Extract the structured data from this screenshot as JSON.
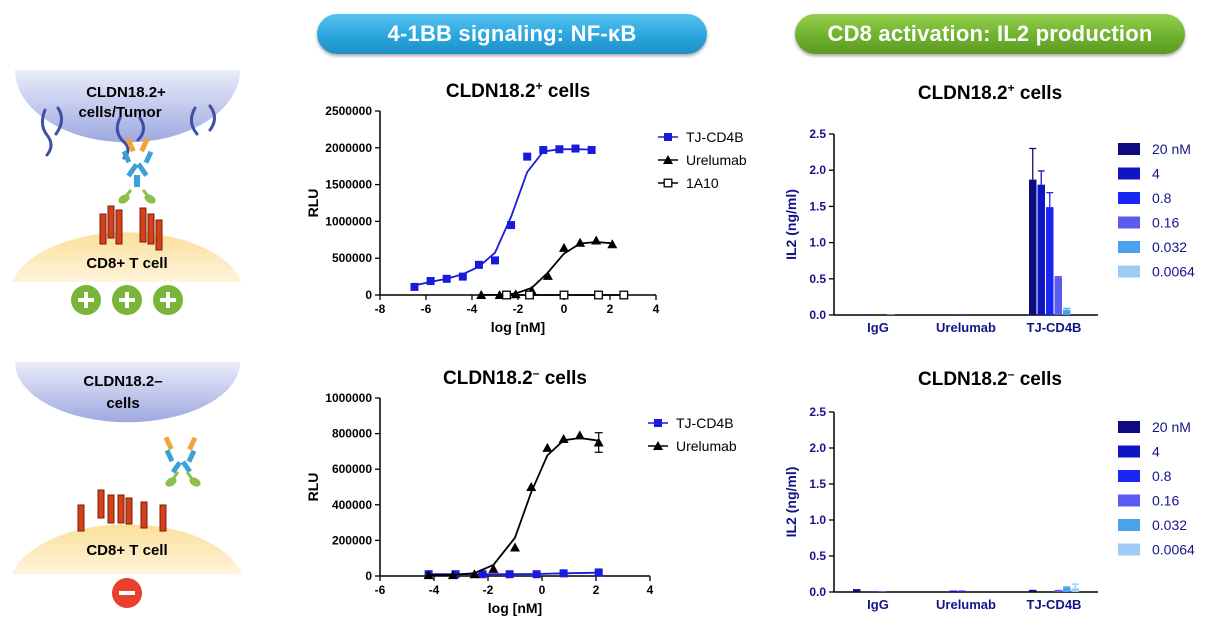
{
  "header": {
    "left_pill": "4-1BB signaling: NF-κB",
    "right_pill": "CD8 activation: IL2 production"
  },
  "colors": {
    "pill_blue": "#2aa6df",
    "pill_green": "#6fb22e",
    "tumor_blue": "#aab4e6",
    "tcell_yellow": "#fbdf9a",
    "receptor_red": "#d4401a",
    "plus_green": "#7ab53a",
    "minus_red": "#e8402a",
    "tj_blue": "#1a1adb"
  },
  "schematic": {
    "top": {
      "tumor_label": "CLDN18.2+ cells/Tumor",
      "tcell_label": "CD8+ T cell",
      "signs": [
        "+",
        "+",
        "+"
      ]
    },
    "bottom": {
      "tumor_label": "CLDN18.2– cells",
      "tcell_label": "CD8+ T cell",
      "signs": [
        "–"
      ]
    }
  },
  "chart_data": [
    {
      "id": "nfkb_pos",
      "type": "line",
      "title": "CLDN18.2",
      "title_sup": "+",
      "title_tail": " cells",
      "xlabel": "log [nM]",
      "ylabel": "RLU",
      "xlim": [
        -8,
        4
      ],
      "ylim": [
        0,
        2500000
      ],
      "xticks": [
        "-8",
        "-6",
        "-4",
        "-2",
        "0",
        "2",
        "4"
      ],
      "yticks": [
        "0",
        "500000",
        "1000000",
        "1500000",
        "2000000",
        "2500000"
      ],
      "series": [
        {
          "name": "TJ-CD4B",
          "color": "#1a1adb",
          "marker": "filled-square",
          "x": [
            -6.5,
            -5.8,
            -5.1,
            -4.4,
            -3.7,
            -3.0,
            -2.3,
            -1.6,
            -0.9,
            -0.2,
            0.5,
            1.2
          ],
          "y": [
            110000,
            190000,
            220000,
            250000,
            410000,
            470000,
            950000,
            1880000,
            1970000,
            1980000,
            1990000,
            1970000
          ]
        },
        {
          "name": "Urelumab",
          "color": "#000000",
          "marker": "filled-triangle",
          "x": [
            -3.6,
            -2.8,
            -2.1,
            -1.4,
            -0.7,
            0.0,
            0.7,
            1.4,
            2.1
          ],
          "y": [
            0,
            0,
            10000,
            60000,
            260000,
            640000,
            710000,
            740000,
            690000
          ]
        },
        {
          "name": "1A10",
          "color": "#000000",
          "marker": "open-square",
          "x": [
            -2.5,
            -1.5,
            0.0,
            1.5,
            2.6
          ],
          "y": [
            0,
            0,
            0,
            0,
            0
          ]
        }
      ]
    },
    {
      "id": "nfkb_neg",
      "type": "line",
      "title": "CLDN18.2",
      "title_sup": "–",
      "title_tail": " cells",
      "xlabel": "log [nM]",
      "ylabel": "RLU",
      "xlim": [
        -6,
        4
      ],
      "ylim": [
        0,
        1000000
      ],
      "xticks": [
        "-6",
        "-4",
        "-2",
        "0",
        "2",
        "4"
      ],
      "yticks": [
        "0",
        "200000",
        "400000",
        "600000",
        "800000",
        "1000000"
      ],
      "series": [
        {
          "name": "TJ-CD4B",
          "color": "#1a1adb",
          "marker": "filled-square",
          "x": [
            -4.2,
            -3.2,
            -2.2,
            -1.2,
            -0.2,
            0.8,
            2.1
          ],
          "y": [
            10000,
            10000,
            10000,
            10000,
            10000,
            15000,
            20000
          ]
        },
        {
          "name": "Urelumab",
          "color": "#000000",
          "marker": "filled-triangle",
          "x": [
            -4.2,
            -3.3,
            -2.5,
            -1.8,
            -1.0,
            -0.4,
            0.2,
            0.8,
            1.4,
            2.1
          ],
          "y": [
            5000,
            5000,
            10000,
            40000,
            160000,
            500000,
            720000,
            770000,
            790000,
            750000
          ],
          "err": [
            0,
            0,
            0,
            0,
            0,
            0,
            0,
            0,
            0,
            55000
          ]
        }
      ]
    },
    {
      "id": "il2_pos",
      "type": "bar",
      "title": "CLDN18.2",
      "title_sup": "+",
      "title_tail": " cells",
      "ylabel": "IL2 (ng/ml)",
      "ylim": [
        0,
        2.5
      ],
      "yticks": [
        "0.0",
        "0.5",
        "1.0",
        "1.5",
        "2.0",
        "2.5"
      ],
      "categories": [
        "IgG",
        "Urelumab",
        "TJ-CD4B"
      ],
      "legend": [
        "20 nM",
        "4",
        "0.8",
        "0.16",
        "0.032",
        "0.0064"
      ],
      "series_colors": [
        "#0c0c7e",
        "#0f14c4",
        "#1a26f5",
        "#5b5bef",
        "#4aa2ee",
        "#9dccf4"
      ],
      "values": [
        [
          0.0,
          0.01,
          0.0,
          0.0,
          0.01,
          0.0
        ],
        [
          0.0,
          0.0,
          0.01,
          0.0,
          0.0,
          0.0
        ],
        [
          1.87,
          1.8,
          1.49,
          0.52,
          0.07,
          0.0
        ]
      ],
      "errors": [
        [
          0,
          0,
          0,
          0,
          0,
          0
        ],
        [
          0,
          0,
          0,
          0,
          0,
          0
        ],
        [
          0.43,
          0.19,
          0.2,
          0.01,
          0.02,
          0
        ]
      ]
    },
    {
      "id": "il2_neg",
      "type": "bar",
      "title": "CLDN18.2",
      "title_sup": "–",
      "title_tail": " cells",
      "ylabel": "IL2 (ng/ml)",
      "ylim": [
        0,
        2.5
      ],
      "yticks": [
        "0.0",
        "0.5",
        "1.0",
        "1.5",
        "2.0",
        "2.5"
      ],
      "categories": [
        "IgG",
        "Urelumab",
        "TJ-CD4B"
      ],
      "legend": [
        "20 nM",
        "4",
        "0.8",
        "0.16",
        "0.032",
        "0.0064"
      ],
      "series_colors": [
        "#0c0c7e",
        "#0f14c4",
        "#1a26f5",
        "#5b5bef",
        "#4aa2ee",
        "#9dccf4"
      ],
      "values": [
        [
          0.04,
          0.0,
          0.01,
          0.01,
          0.0,
          0.0
        ],
        [
          0.0,
          0.02,
          0.02,
          0.0,
          0.0,
          0.0
        ],
        [
          0.03,
          0.0,
          0.0,
          0.03,
          0.06,
          0.05
        ]
      ],
      "errors": [
        [
          0,
          0,
          0,
          0,
          0,
          0
        ],
        [
          0,
          0,
          0,
          0,
          0,
          0
        ],
        [
          0,
          0,
          0,
          0,
          0.01,
          0.06
        ]
      ]
    }
  ]
}
